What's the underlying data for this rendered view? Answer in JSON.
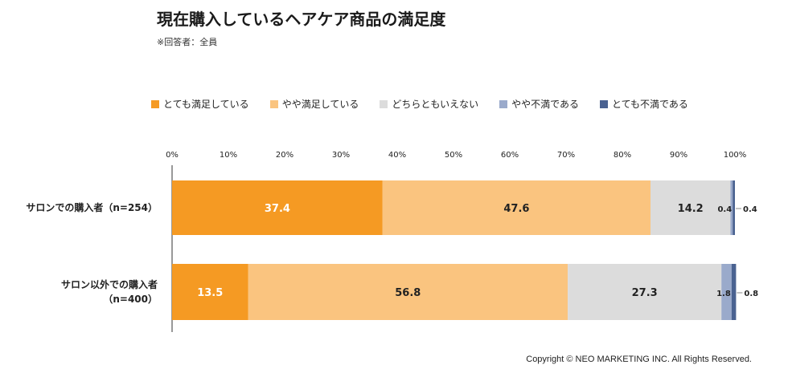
{
  "chart_data": {
    "type": "bar",
    "orientation": "horizontal",
    "stacked": true,
    "title": "現在購入しているヘアケア商品の満足度",
    "subtitle": "※回答者：全員",
    "categories": [
      [
        "サロンでの購入者（n=254）"
      ],
      [
        "サロン以外での購入者",
        "（n=400）"
      ]
    ],
    "series": [
      {
        "name": "とても満足している",
        "color": "#f59a23",
        "label_color": "#ffffff",
        "values": [
          37.4,
          13.5
        ]
      },
      {
        "name": "やや満足している",
        "color": "#fac47f",
        "label_color": "#222222",
        "values": [
          47.6,
          56.8
        ]
      },
      {
        "name": "どちらともいえない",
        "color": "#dcdcdc",
        "label_color": "#222222",
        "values": [
          14.2,
          27.3
        ]
      },
      {
        "name": "やや不満である",
        "color": "#9aaacb",
        "label_color": "#222222",
        "values": [
          0.4,
          1.8
        ]
      },
      {
        "name": "とても不満である",
        "color": "#4a6291",
        "label_color": "#222222",
        "values": [
          0.4,
          0.8
        ]
      }
    ],
    "xticks": [
      "0%",
      "10%",
      "20%",
      "30%",
      "40%",
      "50%",
      "60%",
      "70%",
      "80%",
      "90%",
      "100%"
    ],
    "xlim": [
      0,
      100
    ],
    "legend_position": "top"
  },
  "copyright": "Copyright © NEO MARKETING INC. All Rights Reserved."
}
